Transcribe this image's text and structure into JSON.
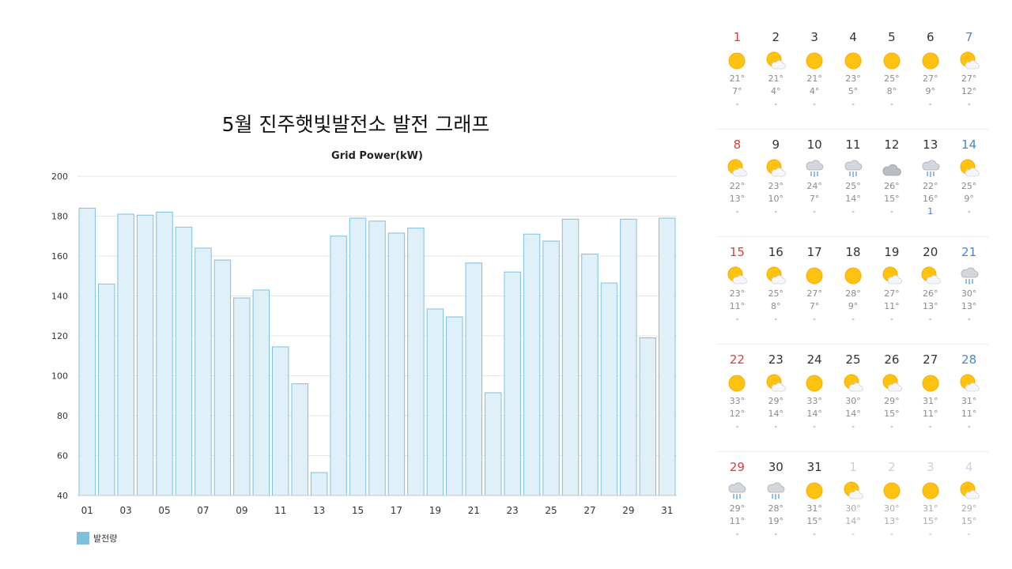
{
  "page_title": "5월 진주햇빛발전소 발전 그래프",
  "chart_data": {
    "type": "bar",
    "title": "Grid Power(kW)",
    "xlabel": "",
    "ylabel": "",
    "ylim": [
      40,
      200
    ],
    "yticks": [
      40,
      60,
      80,
      100,
      120,
      140,
      160,
      180,
      200
    ],
    "grid": true,
    "legend_placement": "bottom-left",
    "categories": [
      "01",
      "02",
      "03",
      "04",
      "05",
      "06",
      "07",
      "08",
      "09",
      "10",
      "11",
      "12",
      "13",
      "14",
      "15",
      "16",
      "17",
      "18",
      "19",
      "20",
      "21",
      "22",
      "23",
      "24",
      "25",
      "26",
      "27",
      "28",
      "29",
      "30",
      "31"
    ],
    "xtick_labels": [
      "01",
      "03",
      "05",
      "07",
      "09",
      "11",
      "13",
      "15",
      "17",
      "19",
      "21",
      "23",
      "25",
      "27",
      "29",
      "31"
    ],
    "series": [
      {
        "name": "발전량",
        "color": "#7ec0e0",
        "fill": "#e0f0f8",
        "values": [
          184,
          146,
          181,
          180.5,
          182,
          174.5,
          164,
          158,
          139,
          143,
          114.5,
          96,
          51.5,
          170,
          179,
          177.5,
          171.5,
          174,
          133.5,
          129.5,
          156.5,
          91.5,
          152,
          171,
          167.5,
          178.5,
          161,
          146.5,
          178.5,
          119,
          179
        ]
      }
    ]
  },
  "calendar": {
    "weeks": [
      [
        {
          "day": "1",
          "icon": "sun",
          "hi": "21°",
          "lo": "7°",
          "rain": "-",
          "kind": "sun"
        },
        {
          "day": "2",
          "icon": "sun-cloud",
          "hi": "21°",
          "lo": "4°",
          "rain": "-",
          "kind": "weekday"
        },
        {
          "day": "3",
          "icon": "sun",
          "hi": "21°",
          "lo": "4°",
          "rain": "-",
          "kind": "weekday"
        },
        {
          "day": "4",
          "icon": "sun",
          "hi": "23°",
          "lo": "5°",
          "rain": "-",
          "kind": "weekday"
        },
        {
          "day": "5",
          "icon": "sun",
          "hi": "25°",
          "lo": "8°",
          "rain": "-",
          "kind": "weekday"
        },
        {
          "day": "6",
          "icon": "sun",
          "hi": "27°",
          "lo": "9°",
          "rain": "-",
          "kind": "weekday"
        },
        {
          "day": "7",
          "icon": "sun-cloud",
          "hi": "27°",
          "lo": "12°",
          "rain": "-",
          "kind": "sat"
        }
      ],
      [
        {
          "day": "8",
          "icon": "sun-cloud",
          "hi": "22°",
          "lo": "13°",
          "rain": "-",
          "kind": "sun"
        },
        {
          "day": "9",
          "icon": "sun-cloud",
          "hi": "23°",
          "lo": "10°",
          "rain": "-",
          "kind": "weekday"
        },
        {
          "day": "10",
          "icon": "rain",
          "hi": "24°",
          "lo": "7°",
          "rain": "-",
          "kind": "weekday"
        },
        {
          "day": "11",
          "icon": "rain",
          "hi": "25°",
          "lo": "14°",
          "rain": "-",
          "kind": "weekday"
        },
        {
          "day": "12",
          "icon": "cloud",
          "hi": "26°",
          "lo": "15°",
          "rain": "-",
          "kind": "weekday"
        },
        {
          "day": "13",
          "icon": "rain",
          "hi": "22°",
          "lo": "16°",
          "rain": "1",
          "kind": "weekday"
        },
        {
          "day": "14",
          "icon": "sun-cloud",
          "hi": "25°",
          "lo": "9°",
          "rain": "-",
          "kind": "sat"
        }
      ],
      [
        {
          "day": "15",
          "icon": "sun-cloud",
          "hi": "23°",
          "lo": "11°",
          "rain": "-",
          "kind": "sun"
        },
        {
          "day": "16",
          "icon": "sun-cloud",
          "hi": "25°",
          "lo": "8°",
          "rain": "-",
          "kind": "weekday"
        },
        {
          "day": "17",
          "icon": "sun",
          "hi": "27°",
          "lo": "7°",
          "rain": "-",
          "kind": "weekday"
        },
        {
          "day": "18",
          "icon": "sun",
          "hi": "28°",
          "lo": "9°",
          "rain": "-",
          "kind": "weekday"
        },
        {
          "day": "19",
          "icon": "sun-cloud",
          "hi": "27°",
          "lo": "11°",
          "rain": "-",
          "kind": "weekday"
        },
        {
          "day": "20",
          "icon": "sun-cloud",
          "hi": "26°",
          "lo": "13°",
          "rain": "-",
          "kind": "weekday"
        },
        {
          "day": "21",
          "icon": "rain",
          "hi": "30°",
          "lo": "13°",
          "rain": "-",
          "kind": "sat"
        }
      ],
      [
        {
          "day": "22",
          "icon": "sun",
          "hi": "33°",
          "lo": "12°",
          "rain": "-",
          "kind": "sun"
        },
        {
          "day": "23",
          "icon": "sun-cloud",
          "hi": "29°",
          "lo": "14°",
          "rain": "-",
          "kind": "weekday"
        },
        {
          "day": "24",
          "icon": "sun",
          "hi": "33°",
          "lo": "14°",
          "rain": "-",
          "kind": "weekday"
        },
        {
          "day": "25",
          "icon": "sun-cloud",
          "hi": "30°",
          "lo": "14°",
          "rain": "-",
          "kind": "weekday"
        },
        {
          "day": "26",
          "icon": "sun-cloud",
          "hi": "29°",
          "lo": "15°",
          "rain": "-",
          "kind": "weekday"
        },
        {
          "day": "27",
          "icon": "sun",
          "hi": "31°",
          "lo": "11°",
          "rain": "-",
          "kind": "weekday"
        },
        {
          "day": "28",
          "icon": "sun-cloud",
          "hi": "31°",
          "lo": "11°",
          "rain": "-",
          "kind": "sat"
        }
      ],
      [
        {
          "day": "29",
          "icon": "rain",
          "hi": "29°",
          "lo": "11°",
          "rain": "-",
          "kind": "sun"
        },
        {
          "day": "30",
          "icon": "rain",
          "hi": "28°",
          "lo": "19°",
          "rain": "-",
          "kind": "weekday"
        },
        {
          "day": "31",
          "icon": "sun",
          "hi": "31°",
          "lo": "15°",
          "rain": "-",
          "kind": "weekday"
        },
        {
          "day": "1",
          "icon": "sun-cloud",
          "hi": "30°",
          "lo": "14°",
          "rain": "-",
          "kind": "other"
        },
        {
          "day": "2",
          "icon": "sun",
          "hi": "30°",
          "lo": "13°",
          "rain": "-",
          "kind": "other"
        },
        {
          "day": "3",
          "icon": "sun",
          "hi": "31°",
          "lo": "15°",
          "rain": "-",
          "kind": "other"
        },
        {
          "day": "4",
          "icon": "sun-cloud",
          "hi": "29°",
          "lo": "15°",
          "rain": "-",
          "kind": "other-sat"
        }
      ]
    ]
  }
}
